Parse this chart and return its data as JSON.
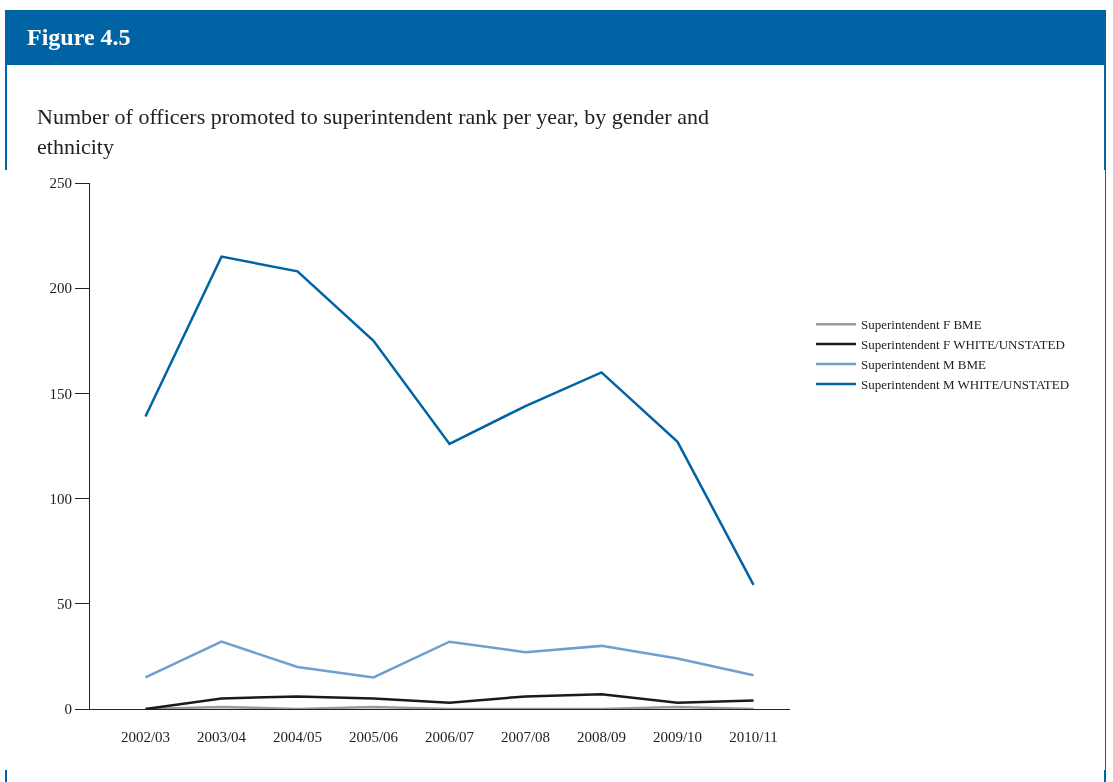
{
  "chart_data": {
    "type": "line",
    "title": "Figure 4.5",
    "subtitle": "Number of officers promoted to superintendent rank per year, by gender and ethnicity",
    "categories": [
      "2002/03",
      "2003/04",
      "2004/05",
      "2005/06",
      "2006/07",
      "2007/08",
      "2008/09",
      "2009/10",
      "2010/11"
    ],
    "series": [
      {
        "name": "Superintendent F BME",
        "color": "#9a9a9a",
        "values": [
          0,
          1,
          0,
          1,
          0,
          0,
          0,
          1,
          0
        ]
      },
      {
        "name": "Superintendent F WHITE/UNSTATED",
        "color": "#1a1a1a",
        "values": [
          0,
          5,
          6,
          5,
          3,
          6,
          7,
          3,
          4
        ]
      },
      {
        "name": "Superintendent M BME",
        "color": "#6f9fd0",
        "values": [
          15,
          32,
          20,
          15,
          32,
          27,
          30,
          24,
          16
        ]
      },
      {
        "name": "Superintendent M WHITE/UNSTATED",
        "color": "#0064a4",
        "values": [
          139,
          215,
          208,
          175,
          126,
          144,
          160,
          127,
          59
        ]
      }
    ],
    "ylim": [
      0,
      250
    ],
    "yticks": [
      0,
      50,
      100,
      150,
      200,
      250
    ],
    "grid": false,
    "legend": "right",
    "marker": "none",
    "line_style": "solid"
  }
}
